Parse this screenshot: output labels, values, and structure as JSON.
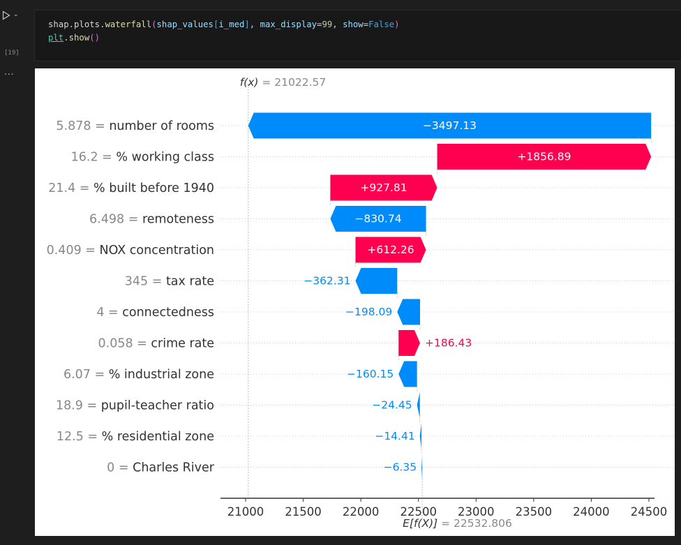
{
  "cell": {
    "execution_count": "[19]",
    "output_menu": "...",
    "code_lines": [
      [
        "shap.plots.waterfall(shap_values[i_med], max_display=99, show=False)"
      ],
      [
        "plt.show()"
      ]
    ],
    "tokens_line1": [
      {
        "t": "shap",
        "c": "t-d"
      },
      {
        "t": ".",
        "c": "t-p"
      },
      {
        "t": "plots",
        "c": "t-d"
      },
      {
        "t": ".",
        "c": "t-p"
      },
      {
        "t": "waterfall",
        "c": "t-fn"
      },
      {
        "t": "(",
        "c": "t-b"
      },
      {
        "t": "shap_values",
        "c": "t-v"
      },
      {
        "t": "[",
        "c": "t-k"
      },
      {
        "t": "i_med",
        "c": "t-v"
      },
      {
        "t": "]",
        "c": "t-k"
      },
      {
        "t": ", ",
        "c": "t-p"
      },
      {
        "t": "max_display",
        "c": "t-v"
      },
      {
        "t": "=",
        "c": "t-p"
      },
      {
        "t": "99",
        "c": "t-n"
      },
      {
        "t": ", ",
        "c": "t-p"
      },
      {
        "t": "show",
        "c": "t-v"
      },
      {
        "t": "=",
        "c": "t-p"
      },
      {
        "t": "False",
        "c": "t-k"
      },
      {
        "t": ")",
        "c": "t-b"
      }
    ],
    "tokens_line2": [
      {
        "t": "plt",
        "c": "t-mod"
      },
      {
        "t": ".",
        "c": "t-p"
      },
      {
        "t": "show",
        "c": "t-fn"
      },
      {
        "t": "()",
        "c": "t-b"
      }
    ]
  },
  "chart_data": {
    "type": "bar",
    "subtype": "waterfall",
    "fx_label": "f(x)",
    "fx_value": "21022.57",
    "base_label": "E[f(X)]",
    "base_value": "22532.806",
    "base_number": 22532.806,
    "fx_number": 21022.57,
    "xlim": [
      20800,
      24600
    ],
    "xticks": [
      21000,
      21500,
      22000,
      22500,
      23000,
      23500,
      24000,
      24500
    ],
    "positive_color": "#ff0051",
    "negative_color": "#008bfb",
    "features": [
      {
        "value": "5.878",
        "name": "number of rooms",
        "shap": -3497.13,
        "label": "−3497.13"
      },
      {
        "value": "16.2",
        "name": "% working class",
        "shap": 1856.89,
        "label": "+1856.89"
      },
      {
        "value": "21.4",
        "name": "% built before 1940",
        "shap": 927.81,
        "label": "+927.81"
      },
      {
        "value": "6.498",
        "name": "remoteness",
        "shap": -830.74,
        "label": "−830.74"
      },
      {
        "value": "0.409",
        "name": "NOX concentration",
        "shap": 612.26,
        "label": "+612.26"
      },
      {
        "value": "345",
        "name": "tax rate",
        "shap": -362.31,
        "label": "−362.31"
      },
      {
        "value": "4",
        "name": "connectedness",
        "shap": -198.09,
        "label": "−198.09"
      },
      {
        "value": "0.058",
        "name": "crime rate",
        "shap": 186.43,
        "label": "+186.43"
      },
      {
        "value": "6.07",
        "name": "% industrial zone",
        "shap": -160.15,
        "label": "−160.15"
      },
      {
        "value": "18.9",
        "name": "pupil-teacher ratio",
        "shap": -24.45,
        "label": "−24.45"
      },
      {
        "value": "12.5",
        "name": "% residential zone",
        "shap": -14.41,
        "label": "−14.41"
      },
      {
        "value": "0",
        "name": "Charles River",
        "shap": -6.35,
        "label": "−6.35"
      }
    ]
  }
}
